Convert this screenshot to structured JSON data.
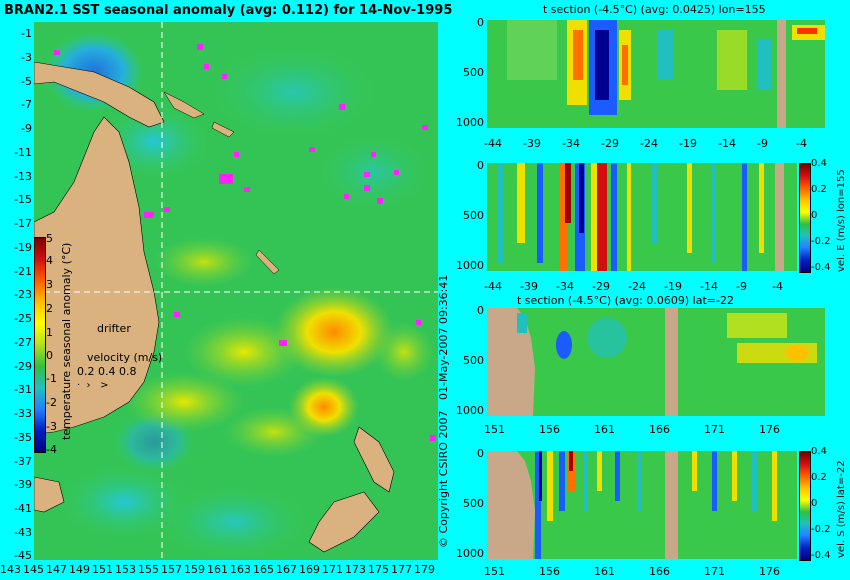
{
  "map": {
    "title": "BRAN2.1 SST seasonal anomaly (avg: 0.112) for 14-Nov-1995",
    "lat_ticks": [
      "-1",
      "-3",
      "-5",
      "-7",
      "-9",
      "-11",
      "-13",
      "-15",
      "-17",
      "-19",
      "-21",
      "-23",
      "-25",
      "-27",
      "-29",
      "-31",
      "-33",
      "-35",
      "-37",
      "-39",
      "-41",
      "-43",
      "-45"
    ],
    "lon_ticks": [
      "143",
      "145",
      "147",
      "149",
      "151",
      "153",
      "155",
      "157",
      "159",
      "161",
      "163",
      "165",
      "167",
      "169",
      "171",
      "173",
      "175",
      "177",
      "179"
    ],
    "colorbar_ticks": [
      "5",
      "4",
      "3",
      "2",
      "1",
      "0",
      "-1",
      "-2",
      "-3",
      "-4"
    ],
    "colorbar_label": "temperature seasonal anomaly (°C)",
    "drifter_label": "drifter",
    "velocity_label": "velocity (m/s)",
    "velocity_values": "0.2 0.4 0.8",
    "section_lon": 155,
    "section_lat": -22
  },
  "side_text": {
    "date_stamp": "01-May-2007 09:36:41",
    "copyright": "© Copyright CSIRO 2007"
  },
  "panels": [
    {
      "title": "t section (-4.5°C) (avg: 0.0425) lon=155",
      "y_ticks": [
        "0",
        "500",
        "1000"
      ],
      "x_ticks": [
        "-44",
        "-39",
        "-34",
        "-29",
        "-24",
        "-19",
        "-14",
        "-9",
        "-4"
      ],
      "colorbar": false
    },
    {
      "title": "",
      "y_ticks": [
        "0",
        "500",
        "1000"
      ],
      "x_ticks": [
        "-44",
        "-39",
        "-34",
        "-29",
        "-24",
        "-19",
        "-14",
        "-9",
        "-4"
      ],
      "colorbar": true,
      "cb_ticks": [
        "0.4",
        "0.2",
        "0",
        "-0.2",
        "-0.4"
      ],
      "cb_label": "vel. E (m/s) lon=155"
    },
    {
      "title": "t section (-4.5°C) (avg: 0.0609) lat=-22",
      "y_ticks": [
        "0",
        "500",
        "1000"
      ],
      "x_ticks": [
        "151",
        "156",
        "161",
        "166",
        "171",
        "176"
      ],
      "colorbar": false
    },
    {
      "title": "",
      "y_ticks": [
        "0",
        "500",
        "1000"
      ],
      "x_ticks": [
        "151",
        "156",
        "161",
        "166",
        "171",
        "176"
      ],
      "colorbar": true,
      "cb_ticks": [
        "0.4",
        "0.2",
        "0",
        "-0.2",
        "-0.4"
      ],
      "cb_label": "vel. S (m/s) lat=-22"
    }
  ]
}
